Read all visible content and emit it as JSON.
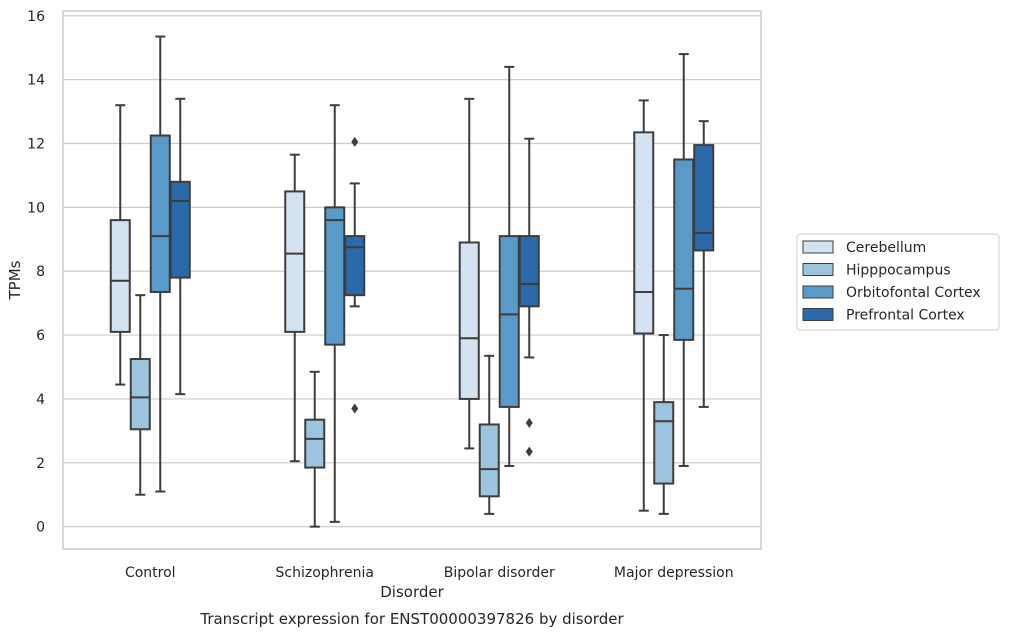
{
  "chart_data": {
    "type": "box",
    "xlabel": "Disorder",
    "ylabel": "TPMs",
    "caption": "Transcript expression for ENST00000397826 by disorder",
    "ylim": [
      -0.7,
      16.15
    ],
    "yticks": [
      0,
      2,
      4,
      6,
      8,
      10,
      12,
      14,
      16
    ],
    "grid": true,
    "legend_position": "right",
    "categories": [
      "Control",
      "Schizophrenia",
      "Bipolar disorder",
      "Major depression"
    ],
    "series": [
      {
        "name": "Cerebellum",
        "color": "#d4e2f1",
        "boxes": [
          {
            "whisker_low": 4.45,
            "q1": 6.1,
            "median": 7.7,
            "q3": 9.6,
            "whisker_high": 13.2,
            "outliers": []
          },
          {
            "whisker_low": 2.05,
            "q1": 6.1,
            "median": 8.55,
            "q3": 10.5,
            "whisker_high": 11.65,
            "outliers": []
          },
          {
            "whisker_low": 2.45,
            "q1": 4.0,
            "median": 5.9,
            "q3": 8.9,
            "whisker_high": 13.4,
            "outliers": []
          },
          {
            "whisker_low": 0.5,
            "q1": 6.05,
            "median": 7.35,
            "q3": 12.35,
            "whisker_high": 13.35,
            "outliers": []
          }
        ]
      },
      {
        "name": "Hipppocampus",
        "color": "#9dc4de",
        "boxes": [
          {
            "whisker_low": 1.0,
            "q1": 3.05,
            "median": 4.05,
            "q3": 5.25,
            "whisker_high": 7.25,
            "outliers": []
          },
          {
            "whisker_low": 0.0,
            "q1": 1.85,
            "median": 2.75,
            "q3": 3.35,
            "whisker_high": 4.85,
            "outliers": []
          },
          {
            "whisker_low": 0.4,
            "q1": 0.95,
            "median": 1.8,
            "q3": 3.2,
            "whisker_high": 5.35,
            "outliers": []
          },
          {
            "whisker_low": 0.4,
            "q1": 1.35,
            "median": 3.3,
            "q3": 3.9,
            "whisker_high": 6.0,
            "outliers": []
          }
        ]
      },
      {
        "name": "Orbitofontal Cortex",
        "color": "#5a9ac9",
        "boxes": [
          {
            "whisker_low": 1.1,
            "q1": 7.35,
            "median": 9.1,
            "q3": 12.25,
            "whisker_high": 15.35,
            "outliers": []
          },
          {
            "whisker_low": 0.15,
            "q1": 5.7,
            "median": 9.6,
            "q3": 10.0,
            "whisker_high": 13.2,
            "outliers": []
          },
          {
            "whisker_low": 1.9,
            "q1": 3.75,
            "median": 6.65,
            "q3": 9.1,
            "whisker_high": 14.4,
            "outliers": []
          },
          {
            "whisker_low": 1.9,
            "q1": 5.85,
            "median": 7.45,
            "q3": 11.5,
            "whisker_high": 14.8,
            "outliers": []
          }
        ]
      },
      {
        "name": "Prefrontal Cortex",
        "color": "#2c69aa",
        "boxes": [
          {
            "whisker_low": 4.15,
            "q1": 7.8,
            "median": 10.2,
            "q3": 10.8,
            "whisker_high": 13.4,
            "outliers": []
          },
          {
            "whisker_low": 6.9,
            "q1": 7.25,
            "median": 8.75,
            "q3": 9.1,
            "whisker_high": 10.75,
            "outliers": [
              12.05,
              3.7
            ]
          },
          {
            "whisker_low": 5.3,
            "q1": 6.9,
            "median": 7.6,
            "q3": 9.1,
            "whisker_high": 12.15,
            "outliers": [
              3.25,
              2.35
            ]
          },
          {
            "whisker_low": 3.75,
            "q1": 8.65,
            "median": 9.2,
            "q3": 11.95,
            "whisker_high": 12.7,
            "outliers": []
          }
        ]
      }
    ]
  }
}
